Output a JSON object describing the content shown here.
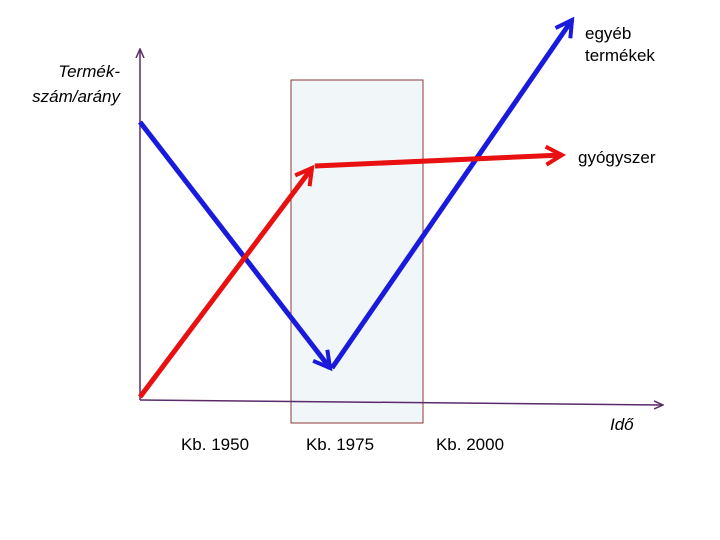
{
  "y_axis_label": [
    "Termék-",
    "szám/arány"
  ],
  "x_axis_label": "Idő",
  "time_labels": [
    "Kb. 1950",
    "Kb. 1975",
    "Kb. 2000"
  ],
  "curves": [
    {
      "label": [
        "egyéb",
        "termékek"
      ]
    },
    {
      "label": "gyógyszer"
    }
  ]
}
